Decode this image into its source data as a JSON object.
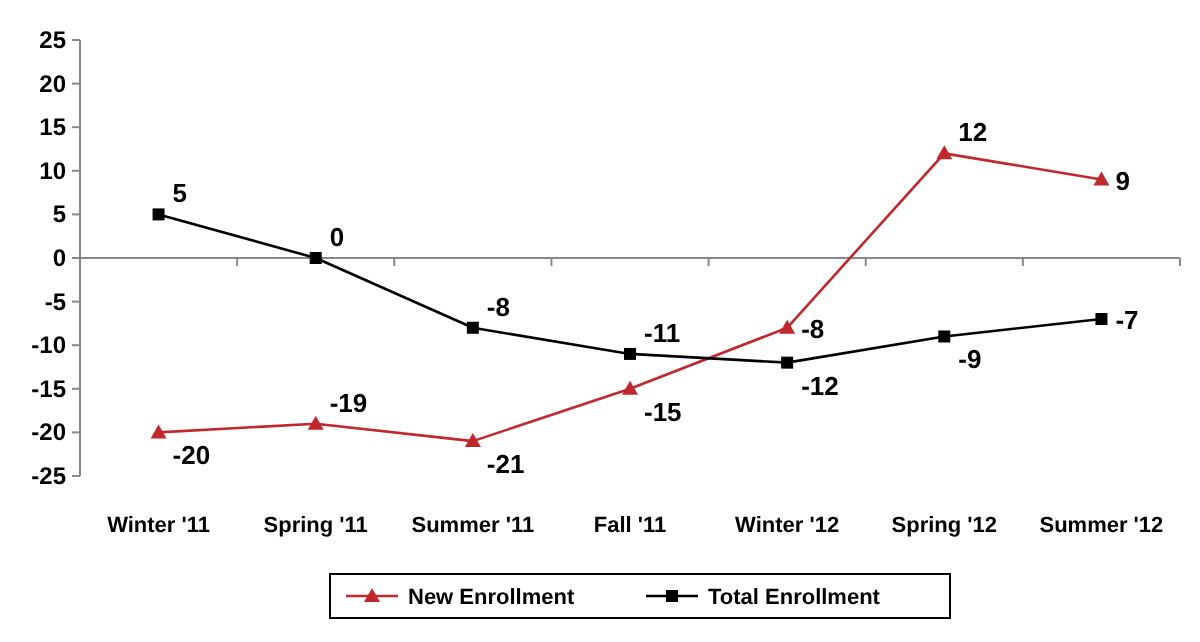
{
  "chart_data": {
    "type": "line",
    "categories": [
      "Winter '11",
      "Spring '11",
      "Summer '11",
      "Fall '11",
      "Winter '12",
      "Spring '12",
      "Summer '12"
    ],
    "series": [
      {
        "name": "New Enrollment",
        "color": "#c0282d",
        "marker": "triangle",
        "values": [
          -20,
          -19,
          -21,
          -15,
          -8,
          12,
          9
        ]
      },
      {
        "name": "Total Enrollment",
        "color": "#000000",
        "marker": "square",
        "values": [
          5,
          0,
          -8,
          -11,
          -12,
          -9,
          -7
        ]
      }
    ],
    "ylim": [
      -25,
      25
    ],
    "yticks": [
      -25,
      -20,
      -15,
      -10,
      -5,
      0,
      5,
      10,
      15,
      20,
      25
    ],
    "legend": "bottom",
    "data_labels": true
  }
}
